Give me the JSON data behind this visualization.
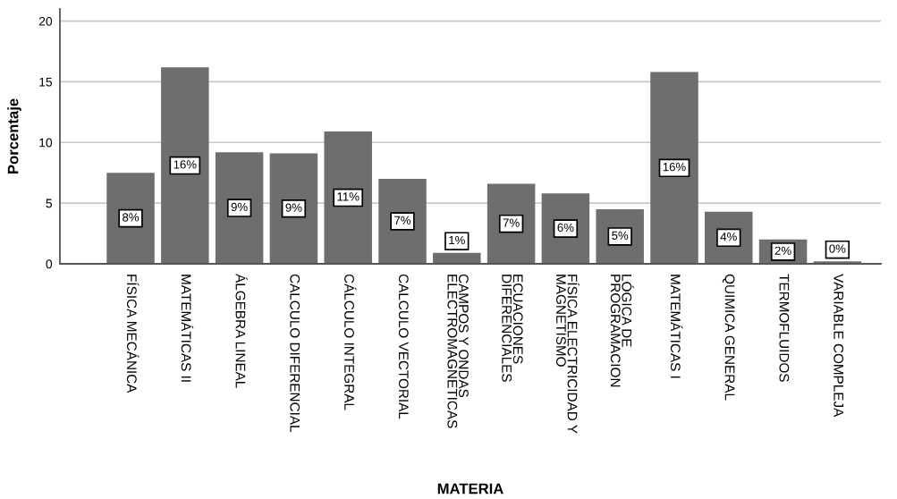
{
  "chart_data": {
    "type": "bar",
    "xlabel": "MATERIA",
    "ylabel": "Porcentaje",
    "categories": [
      "FÍSICA MECÁNICA",
      "MATEMÁTICAS II",
      "ÁLGEBRA LINEAL",
      "CALCULO DIFERENCIAL",
      "CÁLCULO INTEGRAL",
      "CALCULO VECTORIAL",
      "CAMPOS Y ONDAS\nELECTROMAGNETICAS",
      "ECUACIONES\nDIFERENCIALES",
      "FÍSICA ELECTRICIDAD Y\nMAGNETISMO",
      "LÓGICA DE\nPROGRAMACION",
      "MATEMÁTICAS I",
      "QUIMICA GENERAL",
      "TERMOFLUIDOS",
      "VARIABLE COMPLEJA"
    ],
    "values": [
      7.5,
      16.2,
      9.2,
      9.1,
      10.9,
      7.0,
      0.9,
      6.6,
      5.8,
      4.5,
      15.8,
      4.3,
      2.0,
      0.2
    ],
    "value_labels": [
      "8%",
      "16%",
      "9%",
      "9%",
      "11%",
      "7%",
      "1%",
      "7%",
      "6%",
      "5%",
      "16%",
      "4%",
      "2%",
      "0%"
    ],
    "color": "#6e6e6e",
    "ylim": [
      0,
      21
    ],
    "yticks": [
      0,
      5,
      10,
      15,
      20
    ],
    "grid": "y"
  }
}
